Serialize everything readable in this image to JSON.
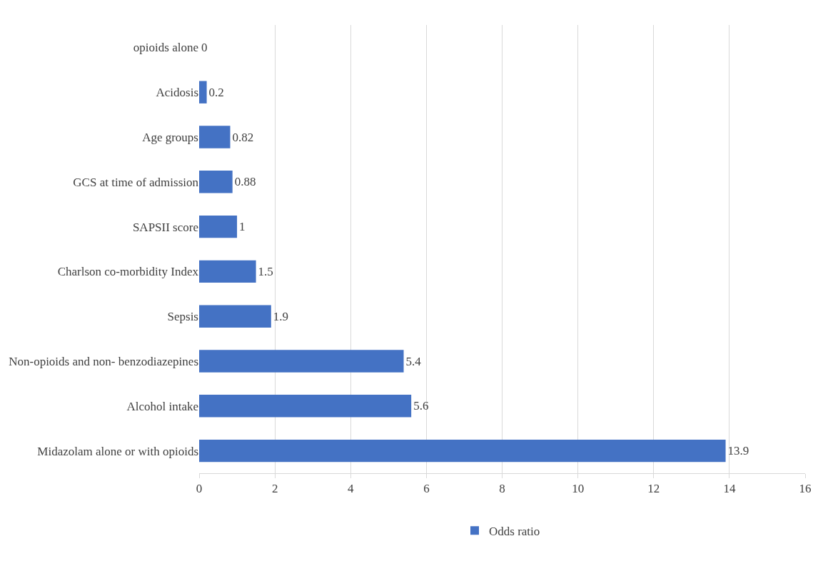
{
  "chart_data": {
    "type": "bar",
    "orientation": "horizontal",
    "categories": [
      "opioids alone",
      "Acidosis",
      "Age groups",
      "GCS at time of admission",
      "SAPSII score",
      "Charlson co-morbidity Index",
      "Sepsis",
      "Non-opioids and non- benzodiazepines",
      "Alcohol intake",
      "Midazolam alone or with opioids"
    ],
    "series": [
      {
        "name": "Odds ratio",
        "color": "#4472c4",
        "values": [
          0,
          0.2,
          0.82,
          0.88,
          1,
          1.5,
          1.9,
          5.4,
          5.6,
          13.9
        ]
      }
    ],
    "xlim": [
      0,
      16
    ],
    "xticks": [
      0,
      2,
      4,
      6,
      8,
      10,
      12,
      14,
      16
    ],
    "grid": "x",
    "legend": "bottom",
    "data_labels": true
  }
}
